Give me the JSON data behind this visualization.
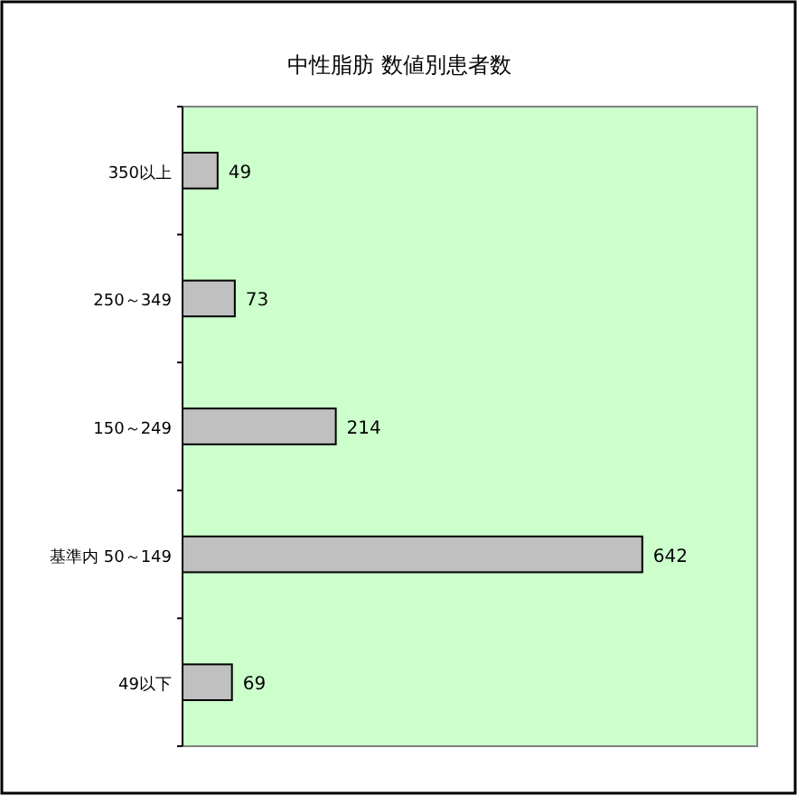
{
  "chart_data": {
    "type": "bar",
    "orientation": "horizontal",
    "title": "中性脂肪 数値別患者数",
    "categories": [
      "350以上",
      "250～349",
      "150～249",
      "基準内 50～149",
      "49以下"
    ],
    "values": [
      49,
      73,
      214,
      642,
      69
    ],
    "color": "#c0c0c0",
    "data_labels": true,
    "grid": false
  }
}
